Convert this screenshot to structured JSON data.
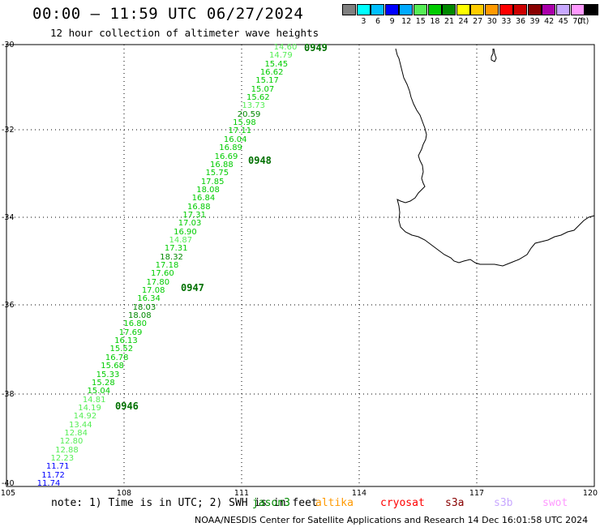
{
  "header": {
    "title": "00:00 – 11:59 UTC 06/27/2024",
    "subtitle": "12 hour collection of altimeter wave heights"
  },
  "colorbar": {
    "unit": "(ft)",
    "entries": [
      {
        "label": "",
        "color": "#808080"
      },
      {
        "label": "3",
        "color": "#00ffff"
      },
      {
        "label": "6",
        "color": "#00bfff"
      },
      {
        "label": "9",
        "color": "#0000ff"
      },
      {
        "label": "12",
        "color": "#00aaff"
      },
      {
        "label": "15",
        "color": "#55ee55"
      },
      {
        "label": "18",
        "color": "#00cc00"
      },
      {
        "label": "21",
        "color": "#008800"
      },
      {
        "label": "24",
        "color": "#ffff00"
      },
      {
        "label": "27",
        "color": "#ffcc00"
      },
      {
        "label": "30",
        "color": "#ff9900"
      },
      {
        "label": "33",
        "color": "#ff0000"
      },
      {
        "label": "36",
        "color": "#cc0000"
      },
      {
        "label": "39",
        "color": "#880000"
      },
      {
        "label": "42",
        "color": "#aa00aa"
      },
      {
        "label": "45",
        "color": "#c8a8ff"
      },
      {
        "label": "70",
        "color": "#ff99ff"
      },
      {
        "label": "",
        "color": "#000000"
      }
    ]
  },
  "axes": {
    "lat_labels": [
      "-30",
      "-32",
      "-34",
      "-36",
      "-38",
      "-40"
    ],
    "lon_labels": [
      "105",
      "108",
      "111",
      "114",
      "117",
      "120"
    ]
  },
  "wave_heights": [
    {
      "value": "14.60",
      "color": "#55ee55"
    },
    {
      "value": "14.79",
      "color": "#55ee55"
    },
    {
      "value": "15.45",
      "color": "#00cc00"
    },
    {
      "value": "16.62",
      "color": "#00cc00"
    },
    {
      "value": "15.17",
      "color": "#00cc00"
    },
    {
      "value": "15.07",
      "color": "#00cc00"
    },
    {
      "value": "15.62",
      "color": "#00cc00"
    },
    {
      "value": "13.73",
      "color": "#55ee55"
    },
    {
      "value": "20.59",
      "color": "#008800"
    },
    {
      "value": "15.98",
      "color": "#00cc00"
    },
    {
      "value": "17.11",
      "color": "#00cc00"
    },
    {
      "value": "16.04",
      "color": "#00cc00"
    },
    {
      "value": "16.89",
      "color": "#00cc00"
    },
    {
      "value": "16.69",
      "color": "#00cc00"
    },
    {
      "value": "16.88",
      "color": "#00cc00"
    },
    {
      "value": "15.75",
      "color": "#00cc00"
    },
    {
      "value": "17.85",
      "color": "#00cc00"
    },
    {
      "value": "18.08",
      "color": "#00cc00"
    },
    {
      "value": "16.84",
      "color": "#00cc00"
    },
    {
      "value": "16.88",
      "color": "#00cc00"
    },
    {
      "value": "17.31",
      "color": "#00cc00"
    },
    {
      "value": "17.03",
      "color": "#00cc00"
    },
    {
      "value": "16.90",
      "color": "#00cc00"
    },
    {
      "value": "14.87",
      "color": "#55ee55"
    },
    {
      "value": "17.31",
      "color": "#00cc00"
    },
    {
      "value": "18.32",
      "color": "#008800"
    },
    {
      "value": "17.18",
      "color": "#00cc00"
    },
    {
      "value": "17.60",
      "color": "#00cc00"
    },
    {
      "value": "17.80",
      "color": "#00cc00"
    },
    {
      "value": "17.08",
      "color": "#00cc00"
    },
    {
      "value": "16.34",
      "color": "#00cc00"
    },
    {
      "value": "18.03",
      "color": "#008800"
    },
    {
      "value": "18.08",
      "color": "#008800"
    },
    {
      "value": "16.80",
      "color": "#00cc00"
    },
    {
      "value": "17.69",
      "color": "#00cc00"
    },
    {
      "value": "16.13",
      "color": "#00cc00"
    },
    {
      "value": "15.52",
      "color": "#00cc00"
    },
    {
      "value": "16.78",
      "color": "#00cc00"
    },
    {
      "value": "15.68",
      "color": "#00cc00"
    },
    {
      "value": "15.33",
      "color": "#00cc00"
    },
    {
      "value": "15.28",
      "color": "#00cc00"
    },
    {
      "value": "15.04",
      "color": "#00cc00"
    },
    {
      "value": "14.81",
      "color": "#55ee55"
    },
    {
      "value": "14.19",
      "color": "#55ee55"
    },
    {
      "value": "14.92",
      "color": "#55ee55"
    },
    {
      "value": "13.44",
      "color": "#55ee55"
    },
    {
      "value": "12.84",
      "color": "#55ee55"
    },
    {
      "value": "12.80",
      "color": "#55ee55"
    },
    {
      "value": "12.88",
      "color": "#55ee55"
    },
    {
      "value": "12.23",
      "color": "#55ee55"
    },
    {
      "value": "11.71",
      "color": "#0000ff"
    },
    {
      "value": "11.72",
      "color": "#0000ff"
    },
    {
      "value": "11.74",
      "color": "#0000ff"
    }
  ],
  "time_labels": [
    "0949",
    "0948",
    "0947",
    "0946"
  ],
  "footer": {
    "note": "note: 1) Time is in UTC; 2) SWH is in feet",
    "satellites": [
      {
        "name": "jason3",
        "color": "#008800"
      },
      {
        "name": "altika",
        "color": "#ff9900"
      },
      {
        "name": "cryosat",
        "color": "#ff0000"
      },
      {
        "name": "s3a",
        "color": "#880000"
      },
      {
        "name": "s3b",
        "color": "#c8a8ff"
      },
      {
        "name": "swot",
        "color": "#ff99ff"
      }
    ],
    "credit": "NOAA/NESDIS Center for Satellite Applications and Research   14 Dec 16:01:58 UTC 2024"
  }
}
